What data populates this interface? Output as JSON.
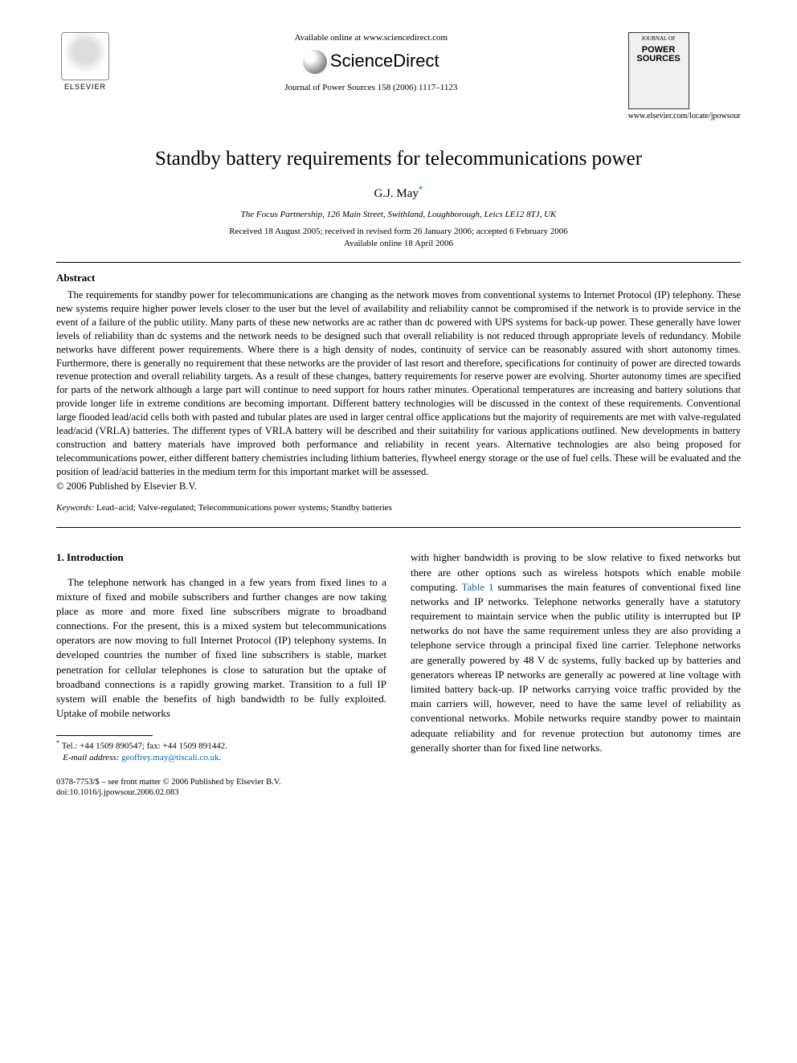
{
  "header": {
    "available_online": "Available online at www.sciencedirect.com",
    "sciencedirect": "ScienceDirect",
    "journal_ref": "Journal of Power Sources 158 (2006) 1117–1123",
    "elsevier": "ELSEVIER",
    "journal_cover_top": "JOURNAL OF",
    "journal_cover_main": "POWER SOURCES",
    "journal_url": "www.elsevier.com/locate/jpowsour"
  },
  "article": {
    "title": "Standby battery requirements for telecommunications power",
    "author": "G.J. May",
    "author_marker": "*",
    "affiliation": "The Focus Partnership, 126 Main Street, Swithland, Loughborough, Leics LE12 8TJ, UK",
    "dates_line1": "Received 18 August 2005; received in revised form 26 January 2006; accepted 6 February 2006",
    "dates_line2": "Available online 18 April 2006"
  },
  "abstract": {
    "heading": "Abstract",
    "text": "The requirements for standby power for telecommunications are changing as the network moves from conventional systems to Internet Protocol (IP) telephony. These new systems require higher power levels closer to the user but the level of availability and reliability cannot be compromised if the network is to provide service in the event of a failure of the public utility. Many parts of these new networks are ac rather than dc powered with UPS systems for back-up power. These generally have lower levels of reliability than dc systems and the network needs to be designed such that overall reliability is not reduced through appropriate levels of redundancy. Mobile networks have different power requirements. Where there is a high density of nodes, continuity of service can be reasonably assured with short autonomy times. Furthermore, there is generally no requirement that these networks are the provider of last resort and therefore, specifications for continuity of power are directed towards revenue protection and overall reliability targets. As a result of these changes, battery requirements for reserve power are evolving. Shorter autonomy times are specified for parts of the network although a large part will continue to need support for hours rather minutes. Operational temperatures are increasing and battery solutions that provide longer life in extreme conditions are becoming important. Different battery technologies will be discussed in the context of these requirements. Conventional large flooded lead/acid cells both with pasted and tubular plates are used in larger central office applications but the majority of requirements are met with valve-regulated lead/acid (VRLA) batteries. The different types of VRLA battery will be described and their suitability for various applications outlined. New developments in battery construction and battery materials have improved both performance and reliability in recent years. Alternative technologies are also being proposed for telecommunications power, either different battery chemistries including lithium batteries, flywheel energy storage or the use of fuel cells. These will be evaluated and the position of lead/acid batteries in the medium term for this important market will be assessed.",
    "copyright": "© 2006 Published by Elsevier B.V.",
    "keywords_label": "Keywords:",
    "keywords": "Lead–acid; Valve-regulated; Telecommunications power systems; Standby batteries"
  },
  "body": {
    "section_heading": "1.  Introduction",
    "col1": "The telephone network has changed in a few years from fixed lines to a mixture of fixed and mobile subscribers and further changes are now taking place as more and more fixed line subscribers migrate to broadband connections. For the present, this is a mixed system but telecommunications operators are now moving to full Internet Protocol (IP) telephony systems. In developed countries the number of fixed line subscribers is stable, market penetration for cellular telephones is close to saturation but the uptake of broadband connections is a rapidly growing market. Transition to a full IP system will enable the benefits of high bandwidth to be fully exploited. Uptake of mobile networks",
    "col2_a": "with higher bandwidth is proving to be slow relative to fixed networks but there are other options such as wireless hotspots which enable mobile computing. ",
    "table_ref": "Table 1",
    "col2_b": " summarises the main features of conventional fixed line networks and IP networks. Telephone networks generally have a statutory requirement to maintain service when the public utility is interrupted but IP networks do not have the same requirement unless they are also providing a telephone service through a principal fixed line carrier. Telephone networks are generally powered by 48 V dc systems, fully backed up by batteries and generators whereas IP networks are generally ac powered at line voltage with limited battery back-up. IP networks carrying voice traffic provided by the main carriers will, however, need to have the same level of reliability as conventional networks. Mobile networks require standby power to maintain adequate reliability and for revenue protection but autonomy times are generally shorter than for fixed line networks."
  },
  "footnote": {
    "marker": "*",
    "contact": "Tel.: +44 1509 890547; fax: +44 1509 891442.",
    "email_label": "E-mail address:",
    "email": "geoffrey.may@tiscali.co.uk"
  },
  "footer": {
    "line1": "0378-7753/$ – see front matter © 2006 Published by Elsevier B.V.",
    "line2": "doi:10.1016/j.jpowsour.2006.02.083"
  },
  "colors": {
    "text": "#000000",
    "link": "#0066aa",
    "background": "#ffffff",
    "rule": "#000000"
  }
}
